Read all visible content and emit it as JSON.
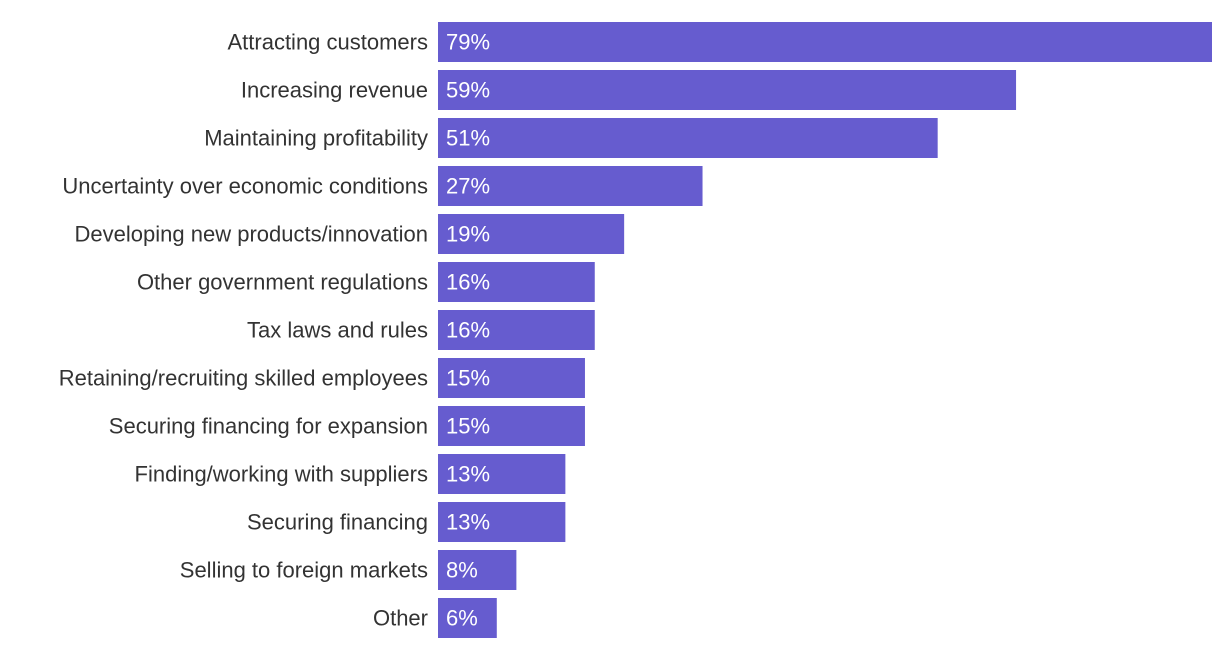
{
  "chart_data": {
    "type": "bar",
    "orientation": "horizontal",
    "bar_color": "#665ccf",
    "value_suffix": "%",
    "categories": [
      "Attracting customers",
      "Increasing revenue",
      "Maintaining profitability",
      "Uncertainty over economic conditions",
      "Developing new products/innovation",
      "Other government regulations",
      "Tax laws and rules",
      "Retaining/recruiting skilled employees",
      "Securing financing for expansion",
      "Finding/working with suppliers",
      "Securing financing",
      "Selling to foreign markets",
      "Other"
    ],
    "values": [
      79,
      59,
      51,
      27,
      19,
      16,
      16,
      15,
      15,
      13,
      13,
      8,
      6
    ],
    "value_labels": [
      "79%",
      "59%",
      "51%",
      "27%",
      "19%",
      "16%",
      "16%",
      "15%",
      "15%",
      "13%",
      "13%",
      "8%",
      "6%"
    ],
    "title": "",
    "xlabel": "",
    "ylabel": "",
    "xlim": [
      0,
      79
    ],
    "grid": false,
    "legend": "none"
  }
}
